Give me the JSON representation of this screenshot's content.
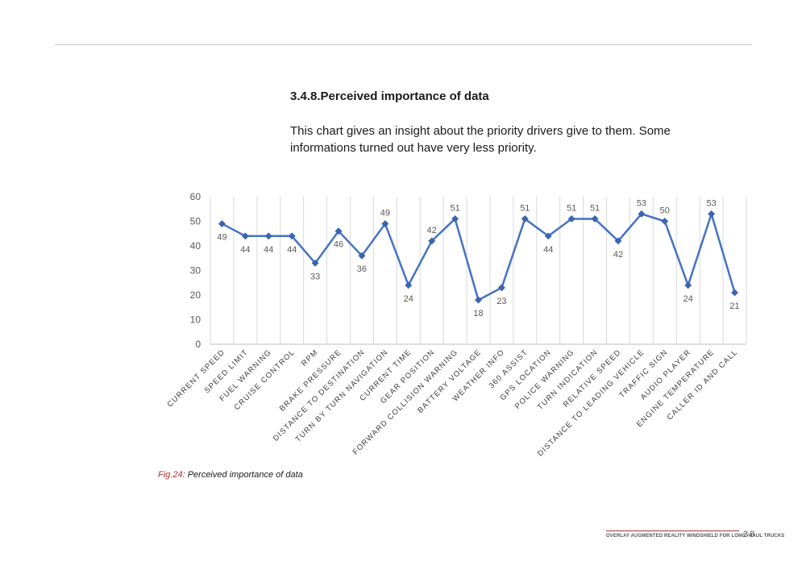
{
  "section": {
    "title": "3.4.8.Perceived importance of data",
    "intro": "This chart gives an insight about the priority drivers give to them. Some informations turned out have very less priority."
  },
  "caption": {
    "prefix": "Fig.24:",
    "text": " Perceived importance of data"
  },
  "footer": {
    "text": "OVERLAY AUGMENTED REALITY WINDSHIELD FOR LONG -HAUL TRUCKS",
    "page": "38"
  },
  "colors": {
    "line": "#4472c4",
    "marker": "#3a64b0",
    "grid": "#d9d9d9",
    "label": "#595959",
    "accent": "#a83232"
  },
  "chart_data": {
    "type": "line",
    "categories": [
      "CURRENT SPEED",
      "SPEED LIMIT",
      "FUEL WARNING",
      "CRUISE CONTROL",
      "RPM",
      "BRAKE PRESSURE",
      "DISTANCE TO DESTINATION",
      "TURN BY TURN NAVIGATION",
      "CURRENT TIME",
      "GEAR POSITION",
      "FORWARD COLLISION WARNING",
      "BATTERY VOLTAGE",
      "WEATHER INFO",
      "360 ASSIST",
      "GPS LOCATION",
      "POLICE WARNING",
      "TURN INDICATION",
      "RELATIVE SPEED",
      "DISTANCE TO LEADING VEHICLE",
      "TRAFFIC SIGN",
      "AUDIO PLAYER",
      "ENGINE TEMPERATURE",
      "CALLER ID AND CALL"
    ],
    "values": [
      49,
      44,
      44,
      44,
      33,
      46,
      36,
      49,
      24,
      42,
      51,
      18,
      23,
      51,
      44,
      51,
      51,
      42,
      53,
      50,
      24,
      53,
      21
    ],
    "label_position": [
      "below",
      "below",
      "below",
      "below",
      "below",
      "below",
      "below",
      "above",
      "below",
      "above",
      "above",
      "below",
      "below",
      "above",
      "below",
      "above",
      "above",
      "below",
      "above",
      "above",
      "below",
      "above",
      "below"
    ],
    "ylim": [
      0,
      60
    ],
    "yticks": [
      0,
      10,
      20,
      30,
      40,
      50,
      60
    ],
    "grid": "vertical",
    "markers": "diamond",
    "data_labels": true,
    "legend": "none"
  }
}
